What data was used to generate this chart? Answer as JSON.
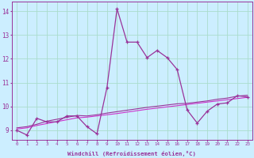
{
  "xlabel": "Windchill (Refroidissement éolien,°C)",
  "background_color": "#cceeff",
  "grid_color": "#aaddcc",
  "line_color1": "#993399",
  "line_color2": "#cc33cc",
  "x": [
    0,
    1,
    2,
    3,
    4,
    5,
    6,
    7,
    8,
    9,
    10,
    11,
    12,
    13,
    14,
    15,
    16,
    17,
    18,
    19,
    20,
    21,
    22,
    23
  ],
  "y_main": [
    9.0,
    8.8,
    9.5,
    9.35,
    9.35,
    9.6,
    9.6,
    9.15,
    8.85,
    10.8,
    14.1,
    12.7,
    12.7,
    12.05,
    12.35,
    12.05,
    11.55,
    9.85,
    9.3,
    9.8,
    10.1,
    10.15,
    10.45,
    10.4
  ],
  "y_trend1": [
    9.05,
    9.1,
    9.2,
    9.28,
    9.36,
    9.44,
    9.52,
    9.55,
    9.6,
    9.65,
    9.7,
    9.76,
    9.82,
    9.88,
    9.93,
    9.98,
    10.03,
    10.08,
    10.13,
    10.18,
    10.23,
    10.28,
    10.33,
    10.38
  ],
  "y_trend2": [
    9.1,
    9.15,
    9.25,
    9.38,
    9.46,
    9.54,
    9.62,
    9.6,
    9.65,
    9.72,
    9.78,
    9.84,
    9.9,
    9.96,
    10.01,
    10.06,
    10.11,
    10.13,
    10.18,
    10.23,
    10.3,
    10.35,
    10.43,
    10.47
  ],
  "ylim": [
    8.6,
    14.4
  ],
  "yticks": [
    9,
    10,
    11,
    12,
    13,
    14
  ],
  "xticks": [
    0,
    1,
    2,
    3,
    4,
    5,
    6,
    7,
    8,
    9,
    10,
    11,
    12,
    13,
    14,
    15,
    16,
    17,
    18,
    19,
    20,
    21,
    22,
    23
  ]
}
